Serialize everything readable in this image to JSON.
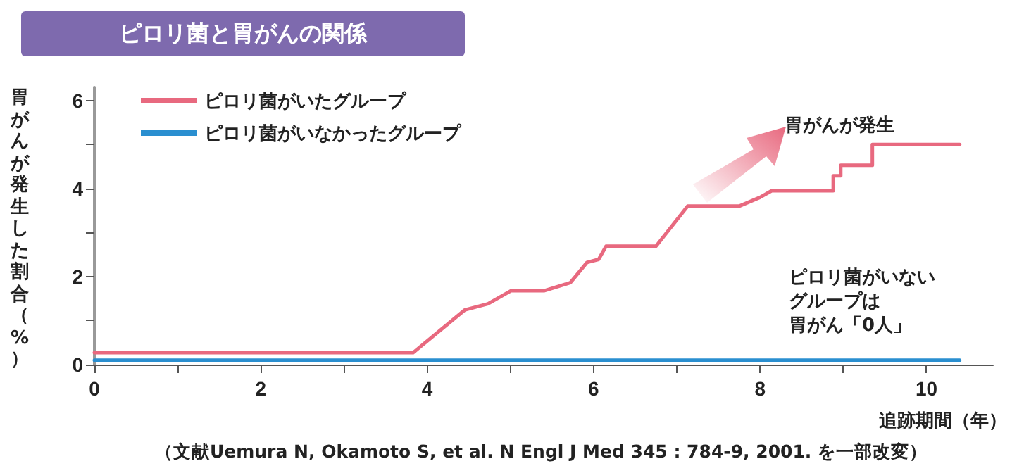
{
  "chart_data": {
    "type": "line",
    "title": "ピロリ菌と胃がんの関係",
    "xlabel": "追跡期間（年）",
    "ylabel": "胃がんが発生した割合（%）",
    "xlim": [
      0,
      10.8
    ],
    "xticks": [
      0,
      {
        "value": 1,
        "label": null
      },
      2,
      {
        "value": 3,
        "label": null
      },
      4,
      {
        "value": 5,
        "label": null
      },
      6,
      {
        "value": 7,
        "label": null
      },
      8,
      {
        "value": 9,
        "label": null
      },
      10
    ],
    "ylim": [
      0,
      6.3
    ],
    "yticks": [
      0,
      {
        "value": 1,
        "label": null
      },
      2,
      {
        "value": 3,
        "label": null
      },
      4,
      {
        "value": 5,
        "label": null
      },
      6
    ],
    "series": [
      {
        "name": "ピロリ菌がいたグループ",
        "color": "#e8697f",
        "x": [
          0,
          3.83,
          4.45,
          4.73,
          5.01,
          5.41,
          5.72,
          5.92,
          6.06,
          6.15,
          6.75,
          7.13,
          7.75,
          8.0,
          8.14,
          8.88,
          8.88,
          8.97,
          8.97,
          9.35,
          9.35,
          10.4
        ],
        "values": [
          0.27,
          0.27,
          1.24,
          1.38,
          1.68,
          1.68,
          1.86,
          2.32,
          2.39,
          2.69,
          2.69,
          3.6,
          3.6,
          3.8,
          3.95,
          3.95,
          4.29,
          4.29,
          4.53,
          4.53,
          5.0,
          5.0
        ]
      },
      {
        "name": "ピロリ菌がいなかったグループ",
        "color": "#2a8fd0",
        "x": [
          0,
          10.4
        ],
        "values": [
          0.1,
          0.1
        ]
      }
    ],
    "legend": "top left",
    "grid": false,
    "marker": "none",
    "line_style": "solid",
    "annotations": [
      "胃がんが発生",
      "ピロリ菌がいない",
      "グループは",
      "胃がん「0人」",
      "（文献Uemura N, Okamoto S, et al. N Engl J Med 345 : 784-9, 2001. を一部改変）"
    ]
  }
}
